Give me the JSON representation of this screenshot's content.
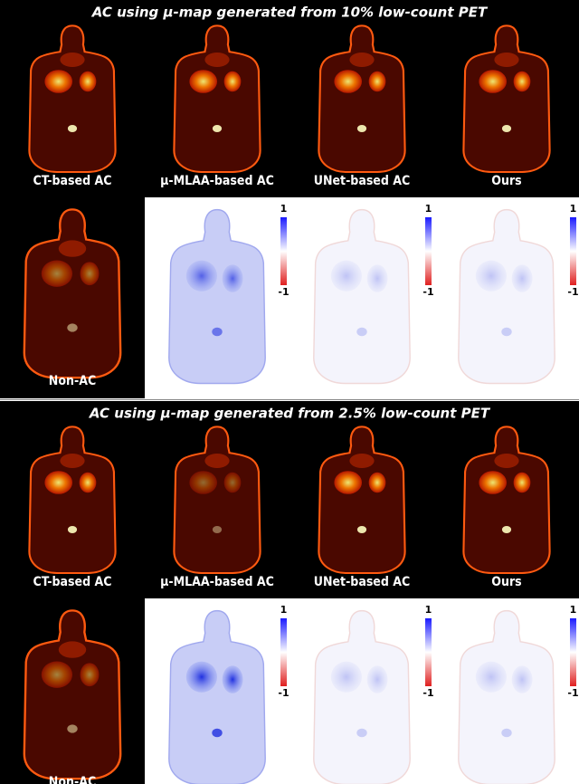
{
  "panels": [
    {
      "title": "AC using μ-map generated from 10% low-count PET",
      "labels": [
        "CT-based AC",
        "μ-MLAA-based AC",
        "UNet-based AC",
        "Ours"
      ],
      "non_ac_label": "Non-AC",
      "colorbars": [
        {
          "max": "1",
          "min": "-1"
        },
        {
          "max": "1",
          "min": "-1"
        },
        {
          "max": "1",
          "min": "-1"
        }
      ]
    },
    {
      "title": "AC using μ-map generated from 2.5% low-count PET",
      "labels": [
        "CT-based AC",
        "μ-MLAA-based AC",
        "UNet-based AC",
        "Ours"
      ],
      "non_ac_label": "Non-AC",
      "colorbars": [
        {
          "max": "1",
          "min": "-1"
        },
        {
          "max": "1",
          "min": "-1"
        },
        {
          "max": "1",
          "min": "-1"
        }
      ]
    }
  ]
}
